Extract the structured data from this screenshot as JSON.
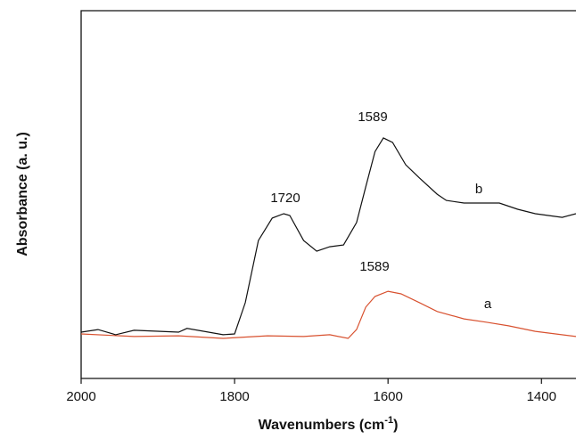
{
  "chart_data": {
    "type": "line",
    "x_label": {
      "text": "Wavenumbers (cm",
      "sup": "-1",
      "end": ")"
    },
    "y_label": "Absorbance (a. u.)",
    "xlim": [
      2000,
      1355
    ],
    "ylim": [
      0,
      100
    ],
    "xticks": [
      2000,
      1800,
      1600,
      1400
    ],
    "series": [
      {
        "name": "a",
        "color": "#d8512f",
        "x": [
          2000,
          1931,
          1873,
          1815,
          1757,
          1710,
          1676,
          1652,
          1641,
          1629,
          1617,
          1600,
          1583,
          1559,
          1536,
          1501,
          1472,
          1443,
          1408,
          1355
        ],
        "values": [
          12.1,
          11.4,
          11.6,
          10.9,
          11.6,
          11.4,
          11.9,
          10.9,
          13.3,
          19.4,
          22.3,
          23.7,
          23.0,
          20.6,
          18.2,
          16.2,
          15.3,
          14.3,
          12.8,
          11.4
        ]
      },
      {
        "name": "b",
        "color": "#111111",
        "x": [
          2000,
          1978,
          1955,
          1931,
          1873,
          1862,
          1815,
          1800,
          1786,
          1769,
          1751,
          1736,
          1728,
          1710,
          1693,
          1676,
          1658,
          1641,
          1629,
          1617,
          1606,
          1594,
          1577,
          1559,
          1536,
          1524,
          1501,
          1455,
          1431,
          1408,
          1373,
          1355
        ],
        "values": [
          12.6,
          13.3,
          11.9,
          13.1,
          12.6,
          13.6,
          11.9,
          12.1,
          20.6,
          37.5,
          43.6,
          44.8,
          44.3,
          37.5,
          34.6,
          35.8,
          36.3,
          42.4,
          52.1,
          61.7,
          65.4,
          64.2,
          58.1,
          54.5,
          50.1,
          48.4,
          47.7,
          47.7,
          46.0,
          44.8,
          43.8,
          44.8
        ]
      }
    ],
    "annotations": [
      "1720",
      "1589",
      "1589"
    ]
  }
}
